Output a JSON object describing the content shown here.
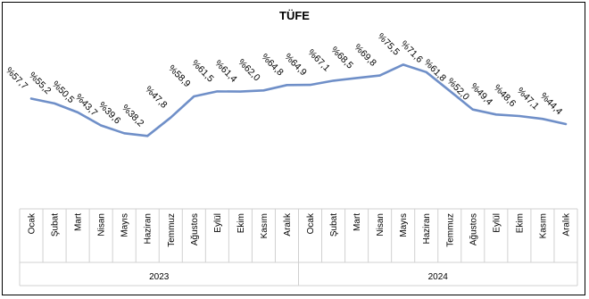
{
  "chart_data": {
    "type": "line",
    "title": "TÜFE",
    "xlabel": "",
    "ylabel": "",
    "grid": false,
    "legend": "none",
    "ylim": [
      0,
      100
    ],
    "line_color": "#6f8fc8",
    "groups": [
      {
        "year": "2023",
        "months": [
          "Ocak",
          "Şubat",
          "Mart",
          "Nisan",
          "Mayıs",
          "Haziran",
          "Temmuz",
          "Ağustos",
          "Eylül",
          "Ekim",
          "Kasım",
          "Aralık"
        ],
        "values": [
          57.7,
          55.2,
          50.5,
          43.7,
          39.6,
          38.2,
          47.8,
          58.9,
          61.5,
          61.4,
          62.0,
          64.8
        ],
        "labels": [
          "%57,7",
          "%55,2",
          "%50,5",
          "%43,7",
          "%39,6",
          "%38,2",
          "%47,8",
          "%58,9",
          "%61,5",
          "%61,4",
          "%62,0",
          "%64,8"
        ]
      },
      {
        "year": "2024",
        "months": [
          "Ocak",
          "Şubat",
          "Mart",
          "Nisan",
          "Mayıs",
          "Haziran",
          "Temmuz",
          "Ağustos",
          "Eylül",
          "Ekim",
          "Kasım",
          "Aralık"
        ],
        "values": [
          64.9,
          67.1,
          68.5,
          69.8,
          75.5,
          71.6,
          61.8,
          52.0,
          49.4,
          48.6,
          47.1,
          44.4
        ],
        "labels": [
          "%64,9",
          "%67,1",
          "%68,5",
          "%69,8",
          "%75,5",
          "%71,6",
          "%61,8",
          "%52,0",
          "%49,4",
          "%48,6",
          "%47,1",
          "%44,4"
        ]
      }
    ]
  }
}
